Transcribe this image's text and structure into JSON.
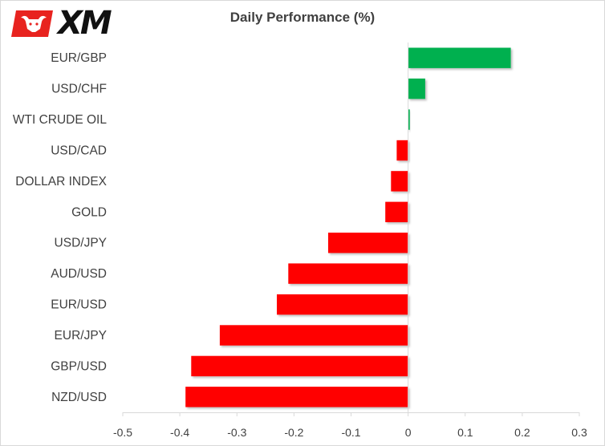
{
  "logo": {
    "brand_text": "XM",
    "colors": {
      "badge": "#e8231f",
      "text": "#111111"
    }
  },
  "colors": {
    "positive": "#00b050",
    "negative": "#ff0000",
    "axis": "#d9d9d9",
    "text": "#404040"
  },
  "chart_data": {
    "type": "bar",
    "orientation": "horizontal",
    "title": "Daily Performance  (%)",
    "xlabel": "",
    "ylabel": "",
    "categories": [
      "EUR/GBP",
      "USD/CHF",
      "WTI CRUDE OIL",
      "USD/CAD",
      "DOLLAR INDEX",
      "GOLD",
      "USD/JPY",
      "AUD/USD",
      "EUR/USD",
      "EUR/JPY",
      "GBP/USD",
      "NZD/USD"
    ],
    "values": [
      0.18,
      0.03,
      0.003,
      -0.02,
      -0.03,
      -0.04,
      -0.14,
      -0.21,
      -0.23,
      -0.33,
      -0.38,
      -0.39
    ],
    "xlim": [
      -0.5,
      0.3
    ],
    "xticks": [
      "-0.5",
      "-0.4",
      "-0.3",
      "-0.2",
      "-0.1",
      "0",
      "0.1",
      "0.2",
      "0.3"
    ],
    "xtick_values": [
      -0.5,
      -0.4,
      -0.3,
      -0.2,
      -0.1,
      0,
      0.1,
      0.2,
      0.3
    ],
    "grid": false,
    "legend": "none"
  }
}
